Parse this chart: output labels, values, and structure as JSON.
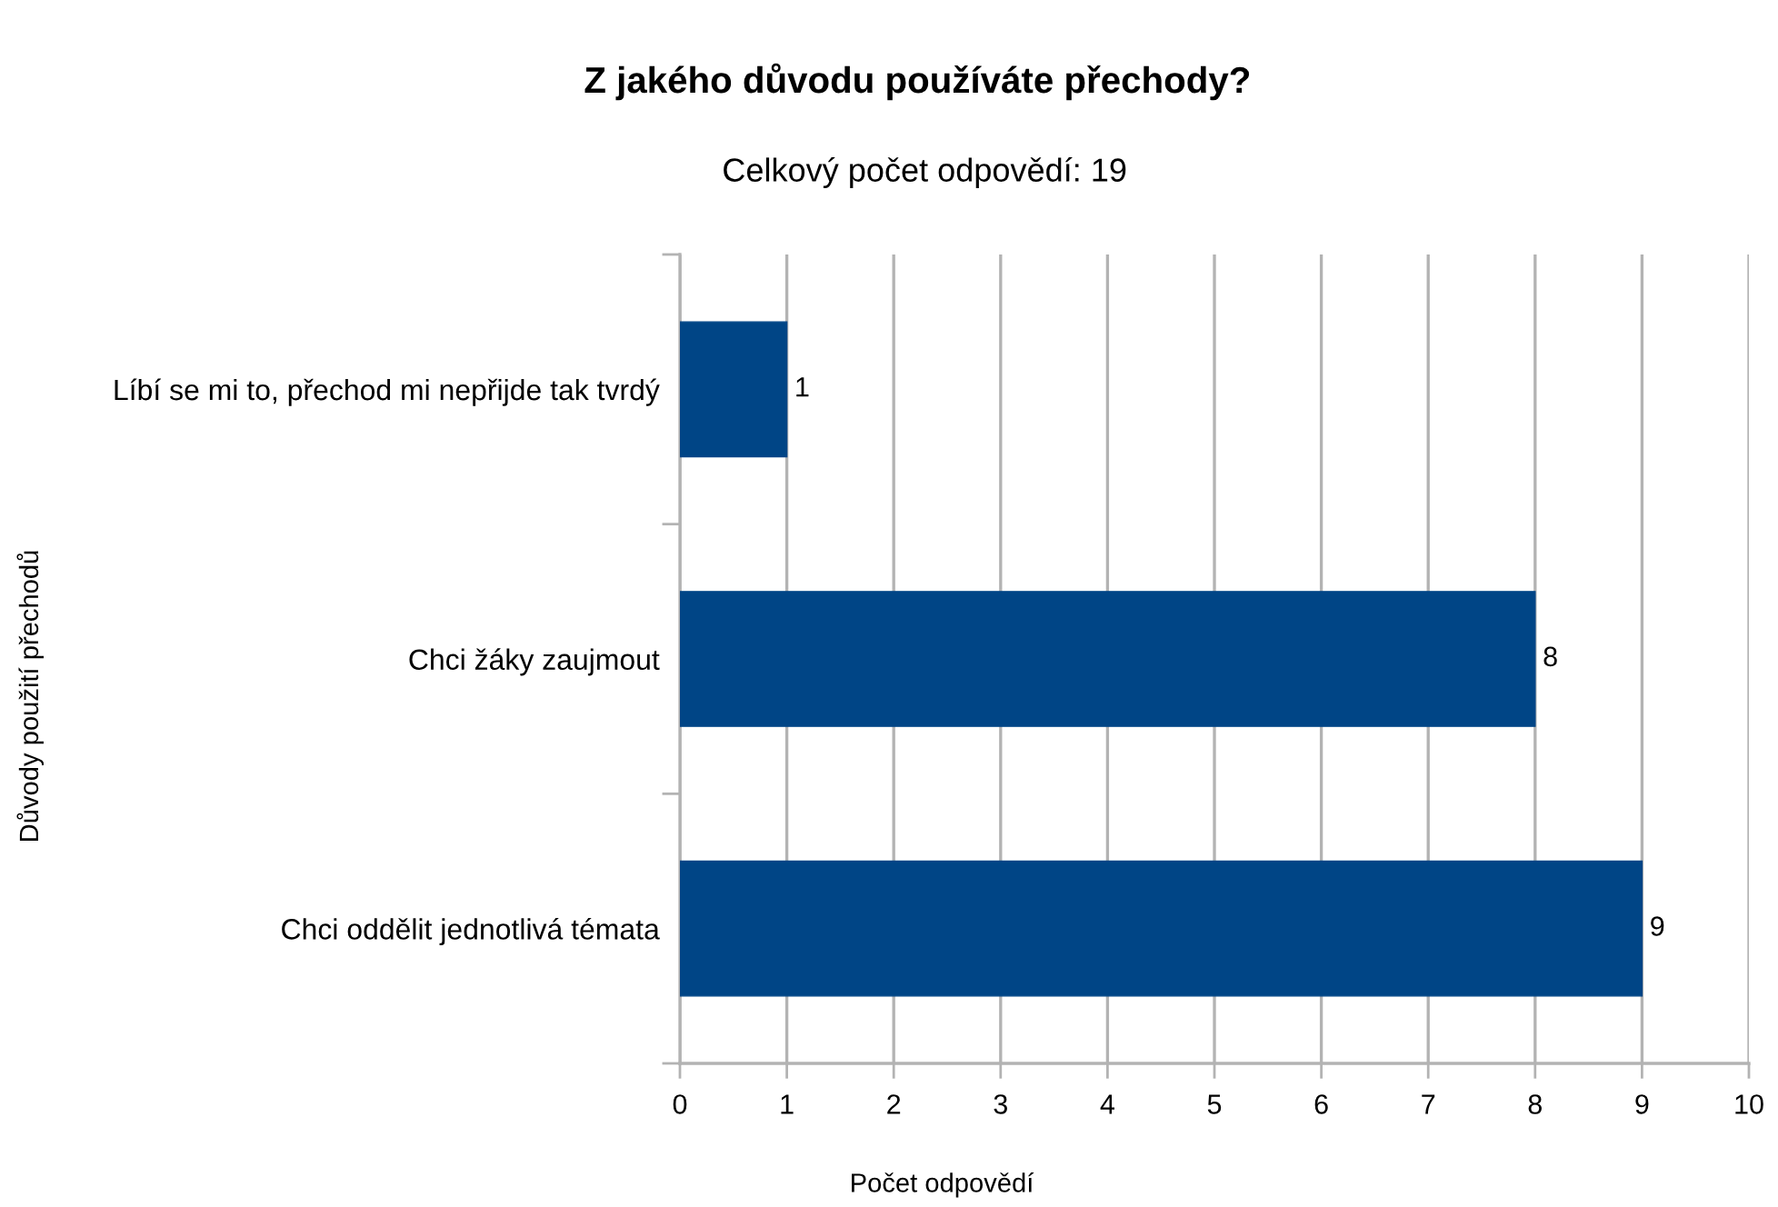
{
  "chart_data": {
    "type": "bar",
    "orientation": "horizontal",
    "title": "Z jakého důvodu používáte přechody?",
    "subtitle": "Celkový počet odpovědí: 19",
    "xlabel": "Počet odpovědí",
    "ylabel": "Důvody použití přechodů",
    "categories": [
      "Líbí se mi to, přechod mi nepřijde tak tvrdý",
      "Chci žáky zaujmout",
      "Chci oddělit jednotlivá témata"
    ],
    "values": [
      1,
      8,
      9
    ],
    "color": "#004586",
    "xlim": [
      0,
      10
    ],
    "xticks": [
      0,
      1,
      2,
      3,
      4,
      5,
      6,
      7,
      8,
      9,
      10
    ],
    "grid": "x",
    "data_labels": true
  }
}
